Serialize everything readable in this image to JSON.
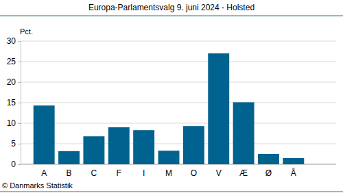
{
  "chart_data": {
    "type": "bar",
    "title": "Europa-Parlamentsvalg 9. juni 2024 - Holsted",
    "ylabel": "Pct.",
    "source": "© Danmarks Statistik",
    "categories": [
      "A",
      "B",
      "C",
      "F",
      "I",
      "M",
      "O",
      "V",
      "Æ",
      "Ø",
      "Å"
    ],
    "values": [
      14.3,
      3.2,
      6.8,
      9.0,
      8.3,
      3.3,
      9.3,
      27.0,
      15.1,
      2.5,
      1.5
    ],
    "color": "#00628f",
    "ylim": [
      0,
      30
    ],
    "yticks": [
      0,
      5,
      10,
      15,
      20,
      25,
      30
    ],
    "grid": true
  }
}
